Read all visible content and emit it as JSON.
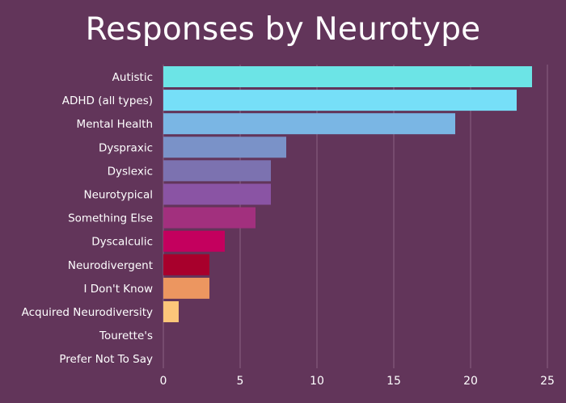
{
  "chart_data": {
    "type": "bar",
    "orientation": "horizontal",
    "title": "Responses by Neurotype",
    "xlabel": "",
    "ylabel": "",
    "categories": [
      "Autistic",
      "ADHD (all types)",
      "Mental Health",
      "Dyspraxic",
      "Dyslexic",
      "Neurotypical",
      "Something Else",
      "Dyscalculic",
      "Neurodivergent",
      "I Don't Know",
      "Acquired Neurodiversity",
      "Tourette's",
      "Prefer Not To Say"
    ],
    "values": [
      24,
      23,
      19,
      8,
      7,
      7,
      6,
      4,
      3,
      3,
      1,
      0,
      0
    ],
    "colors": [
      "#6ce4e6",
      "#76dff8",
      "#7ab6e4",
      "#7a92c8",
      "#7c72b0",
      "#8a54a4",
      "#a2307e",
      "#c4005e",
      "#a8002c",
      "#ec9660",
      "#fcc67a",
      "#62355a",
      "#62355a"
    ],
    "xlim": [
      0,
      25
    ],
    "xticks": [
      0,
      5,
      10,
      15,
      20,
      25
    ],
    "grid": "vertical",
    "legend": "none"
  },
  "style": {
    "background": "#62355a",
    "gridline": "#8a6182",
    "text": "#ffffff"
  }
}
